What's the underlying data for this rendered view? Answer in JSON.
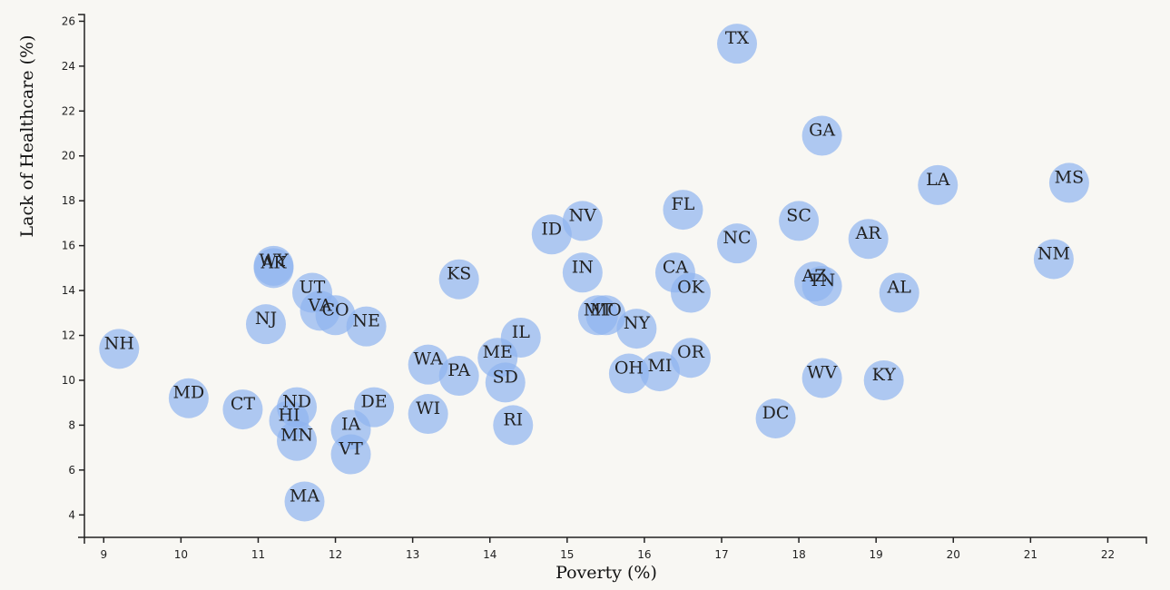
{
  "chart_data": {
    "type": "scatter",
    "xlabel": "Poverty (%)",
    "ylabel": "Lack of Healthcare (%)",
    "xlim": [
      8.75,
      22.5
    ],
    "ylim": [
      3.0,
      26.3
    ],
    "xticks": [
      9,
      10,
      11,
      12,
      13,
      14,
      15,
      16,
      17,
      18,
      19,
      20,
      21,
      22
    ],
    "yticks": [
      4,
      6,
      8,
      10,
      12,
      14,
      16,
      18,
      20,
      22,
      24,
      26
    ],
    "grid": false,
    "point_color": "#8fb3f0",
    "points": [
      {
        "label": "TX",
        "x": 17.2,
        "y": 25.0
      },
      {
        "label": "GA",
        "x": 18.3,
        "y": 20.9
      },
      {
        "label": "LA",
        "x": 19.8,
        "y": 18.7
      },
      {
        "label": "MS",
        "x": 21.5,
        "y": 18.8
      },
      {
        "label": "FL",
        "x": 16.5,
        "y": 17.6
      },
      {
        "label": "NV",
        "x": 15.2,
        "y": 17.1
      },
      {
        "label": "SC",
        "x": 18.0,
        "y": 17.1
      },
      {
        "label": "ID",
        "x": 14.8,
        "y": 16.5
      },
      {
        "label": "NC",
        "x": 17.2,
        "y": 16.1
      },
      {
        "label": "AR",
        "x": 18.9,
        "y": 16.3
      },
      {
        "label": "NM",
        "x": 21.3,
        "y": 15.4
      },
      {
        "label": "WY",
        "x": 11.2,
        "y": 15.1
      },
      {
        "label": "AK",
        "x": 11.2,
        "y": 15.0
      },
      {
        "label": "IN",
        "x": 15.2,
        "y": 14.8
      },
      {
        "label": "CA",
        "x": 16.4,
        "y": 14.8
      },
      {
        "label": "KS",
        "x": 13.6,
        "y": 14.5
      },
      {
        "label": "AZ",
        "x": 18.2,
        "y": 14.4
      },
      {
        "label": "TN",
        "x": 18.3,
        "y": 14.2
      },
      {
        "label": "OK",
        "x": 16.6,
        "y": 13.9
      },
      {
        "label": "AL",
        "x": 19.3,
        "y": 13.9
      },
      {
        "label": "UT",
        "x": 11.7,
        "y": 13.9
      },
      {
        "label": "VA",
        "x": 11.8,
        "y": 13.1
      },
      {
        "label": "CO",
        "x": 12.0,
        "y": 12.9
      },
      {
        "label": "MT",
        "x": 15.4,
        "y": 12.9
      },
      {
        "label": "MO",
        "x": 15.5,
        "y": 12.9
      },
      {
        "label": "NJ",
        "x": 11.1,
        "y": 12.5
      },
      {
        "label": "NE",
        "x": 12.4,
        "y": 12.4
      },
      {
        "label": "NY",
        "x": 15.9,
        "y": 12.3
      },
      {
        "label": "IL",
        "x": 14.4,
        "y": 11.9
      },
      {
        "label": "NH",
        "x": 9.2,
        "y": 11.4
      },
      {
        "label": "ME",
        "x": 14.1,
        "y": 11.0
      },
      {
        "label": "OR",
        "x": 16.6,
        "y": 11.0
      },
      {
        "label": "WA",
        "x": 13.2,
        "y": 10.7
      },
      {
        "label": "PA",
        "x": 13.6,
        "y": 10.2
      },
      {
        "label": "OH",
        "x": 15.8,
        "y": 10.3
      },
      {
        "label": "MI",
        "x": 16.2,
        "y": 10.4
      },
      {
        "label": "WV",
        "x": 18.3,
        "y": 10.1
      },
      {
        "label": "KY",
        "x": 19.1,
        "y": 10.0
      },
      {
        "label": "SD",
        "x": 14.2,
        "y": 9.9
      },
      {
        "label": "MD",
        "x": 10.1,
        "y": 9.2
      },
      {
        "label": "CT",
        "x": 10.8,
        "y": 8.7
      },
      {
        "label": "ND",
        "x": 11.5,
        "y": 8.8
      },
      {
        "label": "DE",
        "x": 12.5,
        "y": 8.8
      },
      {
        "label": "WI",
        "x": 13.2,
        "y": 8.5
      },
      {
        "label": "DC",
        "x": 17.7,
        "y": 8.3
      },
      {
        "label": "HI",
        "x": 11.4,
        "y": 8.2
      },
      {
        "label": "RI",
        "x": 14.3,
        "y": 8.0
      },
      {
        "label": "IA",
        "x": 12.2,
        "y": 7.8
      },
      {
        "label": "MN",
        "x": 11.5,
        "y": 7.3
      },
      {
        "label": "VT",
        "x": 12.2,
        "y": 6.7
      },
      {
        "label": "MA",
        "x": 11.6,
        "y": 4.6
      }
    ]
  }
}
